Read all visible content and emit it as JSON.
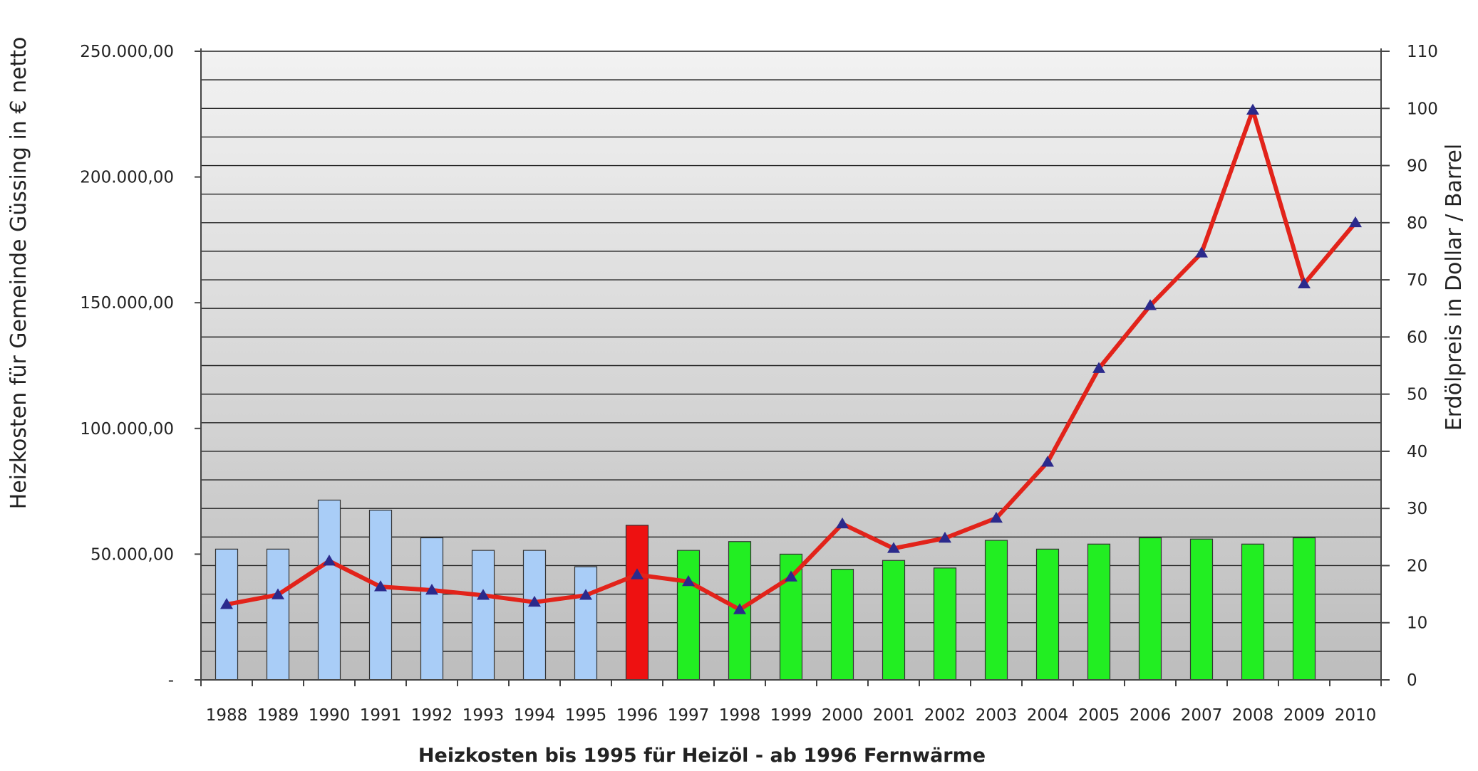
{
  "chart_data": {
    "type": "bar",
    "title": "",
    "xlabel": "Heizkosten bis 1995 für Heizöl - ab 1996 Fernwärme",
    "ylabel": "Heizkosten für Gemeinde Güssing in € netto",
    "y2label": "Erdölpreis in Dollar / Barrel",
    "categories": [
      "1988",
      "1989",
      "1990",
      "1991",
      "1992",
      "1993",
      "1994",
      "1995",
      "1996",
      "1997",
      "1998",
      "1999",
      "2000",
      "2001",
      "2002",
      "2003",
      "2004",
      "2005",
      "2006",
      "2007",
      "2008",
      "2009",
      "2010"
    ],
    "ylim": [
      0,
      250000
    ],
    "y2lim": [
      0,
      110
    ],
    "y_ticks": [
      {
        "value": 0,
        "label": "-"
      },
      {
        "value": 50000,
        "label": "50.000,00"
      },
      {
        "value": 100000,
        "label": "100.000,00"
      },
      {
        "value": 150000,
        "label": "150.000,00"
      },
      {
        "value": 200000,
        "label": "200.000,00"
      },
      {
        "value": 250000,
        "label": "250.000,00"
      }
    ],
    "y2_ticks": [
      "0",
      "10",
      "20",
      "30",
      "40",
      "50",
      "60",
      "70",
      "80",
      "90",
      "100",
      "110"
    ],
    "series": [
      {
        "kind": "bar",
        "axis": "left",
        "values": [
          52000,
          52000,
          71500,
          67500,
          56500,
          51500,
          51500,
          45000,
          61500,
          51500,
          55000,
          50000,
          44000,
          47500,
          44500,
          55500,
          52000,
          54000,
          56500,
          56000,
          54000,
          56500,
          0
        ],
        "colors": [
          "#a9cdf7",
          "#a9cdf7",
          "#a9cdf7",
          "#a9cdf7",
          "#a9cdf7",
          "#a9cdf7",
          "#a9cdf7",
          "#a9cdf7",
          "#ee1111",
          "#22ee22",
          "#22ee22",
          "#22ee22",
          "#22ee22",
          "#22ee22",
          "#22ee22",
          "#22ee22",
          "#22ee22",
          "#22ee22",
          "#22ee22",
          "#22ee22",
          "#22ee22",
          "#22ee22",
          "#22ee22"
        ]
      },
      {
        "kind": "line",
        "axis": "right",
        "color": "#e2231a",
        "marker": "triangle",
        "marker_color": "#2b2a8c",
        "values": [
          13.2,
          14.9,
          20.8,
          16.3,
          15.7,
          14.8,
          13.6,
          14.8,
          18.4,
          17.2,
          12.3,
          18.0,
          27.3,
          23.0,
          24.8,
          28.3,
          38.1,
          54.5,
          65.5,
          74.7,
          99.7,
          69.3,
          80.0
        ]
      }
    ],
    "grid": true,
    "background": "gradient-light-to-mid-gray",
    "legend": "none"
  }
}
